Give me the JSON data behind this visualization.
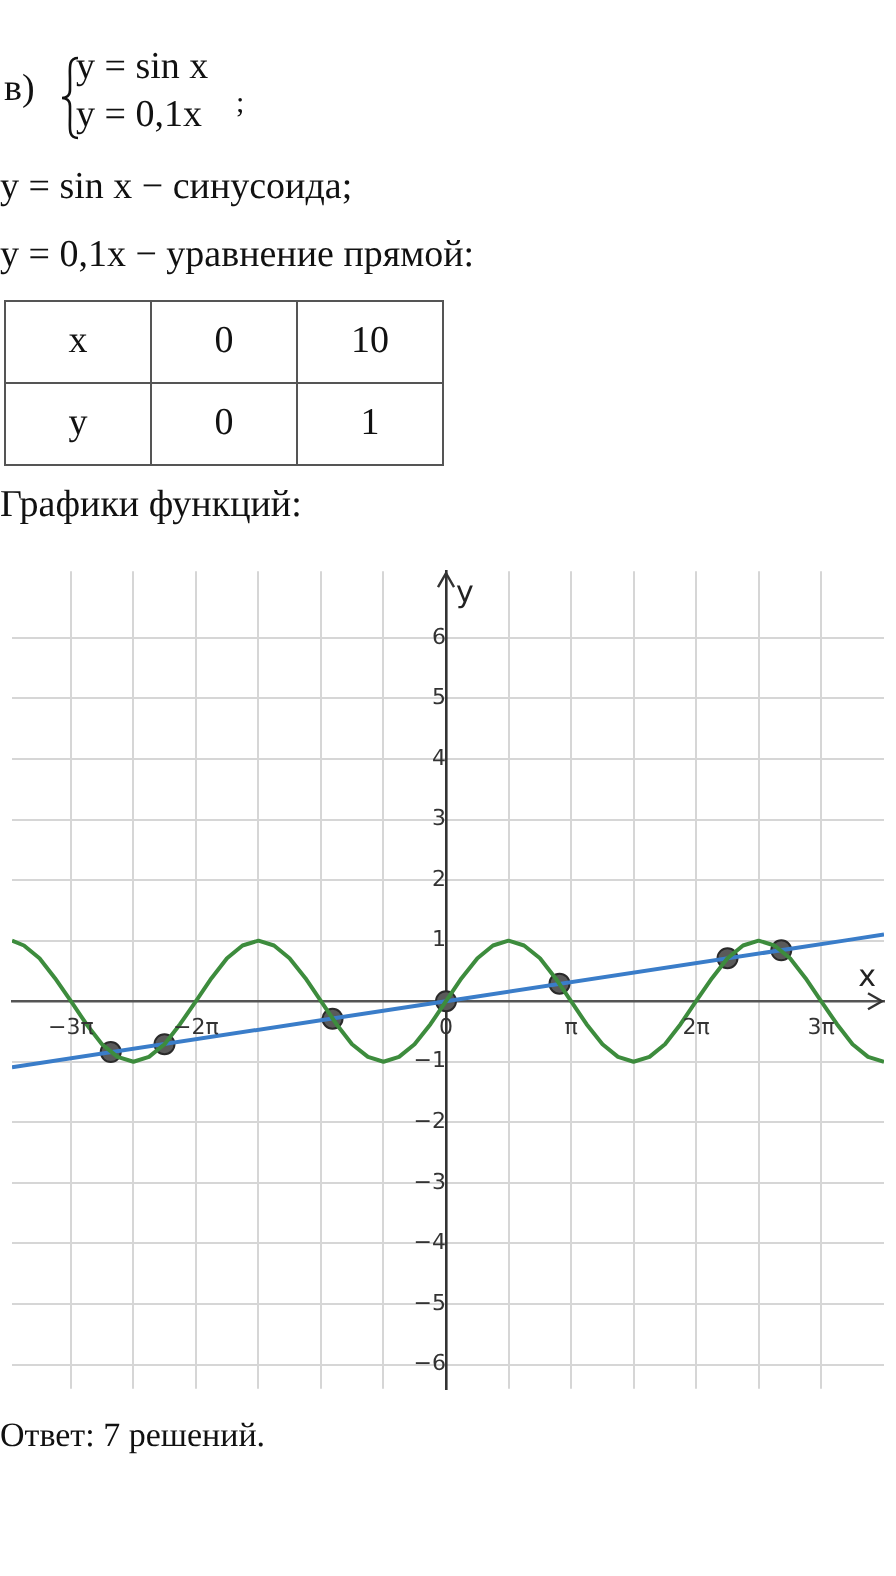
{
  "chart_data": {
    "type": "line",
    "annotations": [
      "в)",
      "y = sin x",
      "y = 0,1x",
      ";",
      "y = sin x − синусоида;",
      "y = 0,1x − уравнение прямой:",
      "x",
      "0",
      "10",
      "y",
      "0",
      "1",
      "Графики функций:",
      "Ответ:  7 решений."
    ],
    "xlabel": "x",
    "ylabel": "y",
    "xlim": [
      -10.9,
      11.0
    ],
    "ylim": [
      -6.4,
      7.1
    ],
    "xticks": [
      {
        "value": -9.42,
        "label": "−3π"
      },
      {
        "value": -7.85,
        "label": null
      },
      {
        "value": -6.28,
        "label": "−2π"
      },
      {
        "value": -4.71,
        "label": null
      },
      {
        "value": -3.14,
        "label": null
      },
      {
        "value": -1.57,
        "label": null
      },
      {
        "value": 0,
        "label": "0"
      },
      {
        "value": 1.57,
        "label": null
      },
      {
        "value": 3.14,
        "label": "π"
      },
      {
        "value": 4.71,
        "label": null
      },
      {
        "value": 6.28,
        "label": "2π"
      },
      {
        "value": 7.85,
        "label": null
      },
      {
        "value": 9.42,
        "label": "3π"
      }
    ],
    "yticks": [
      -6,
      -5,
      -4,
      -3,
      -2,
      -1,
      {
        "value": 0,
        "label": null
      },
      1,
      2,
      3,
      4,
      5,
      6
    ],
    "grid": true,
    "legend": false,
    "series": [
      {
        "type": "line",
        "color": "#3d8c3d",
        "marker": "none",
        "x": [
          -10.9,
          -10.6,
          -10.21,
          -9.82,
          -9.42,
          -9.03,
          -8.64,
          -8.25,
          -7.85,
          -7.46,
          -7.07,
          -6.68,
          -6.28,
          -5.89,
          -5.5,
          -5.11,
          -4.71,
          -4.32,
          -3.93,
          -3.53,
          -3.14,
          -2.75,
          -2.36,
          -1.96,
          -1.57,
          -1.18,
          -0.79,
          -0.39,
          0,
          0.39,
          0.79,
          1.18,
          1.57,
          1.96,
          2.36,
          2.75,
          3.14,
          3.53,
          3.93,
          4.32,
          4.71,
          5.11,
          5.5,
          5.89,
          6.28,
          6.68,
          7.07,
          7.46,
          7.85,
          8.25,
          8.64,
          9.03,
          9.42,
          9.82,
          10.21,
          10.6,
          11.0
        ],
        "values": [
          1.0,
          0.92,
          0.71,
          0.38,
          0,
          -0.38,
          -0.71,
          -0.92,
          -1,
          -0.92,
          -0.71,
          -0.38,
          0,
          0.38,
          0.71,
          0.92,
          1,
          0.92,
          0.71,
          0.38,
          0,
          -0.38,
          -0.71,
          -0.92,
          -1,
          -0.92,
          -0.71,
          -0.38,
          0,
          0.38,
          0.71,
          0.92,
          1,
          0.92,
          0.71,
          0.38,
          0,
          -0.38,
          -0.71,
          -0.92,
          -1,
          -0.92,
          -0.71,
          -0.38,
          0,
          0.38,
          0.71,
          0.92,
          1,
          0.92,
          0.71,
          0.38,
          0,
          -0.38,
          -0.71,
          -0.92,
          -1.0
        ]
      },
      {
        "type": "line",
        "color": "#3a7dc9",
        "marker": "none",
        "x": [
          -10.9,
          0,
          10,
          11.0
        ],
        "values": [
          -1.09,
          0,
          1,
          1.1
        ]
      },
      {
        "type": "scatter",
        "color": "#5a5a5a",
        "marker": "circle",
        "x": [
          -8.42,
          -7.07,
          -2.85,
          0,
          2.85,
          7.07,
          8.42
        ],
        "values": [
          -0.84,
          -0.71,
          -0.29,
          0,
          0.29,
          0.71,
          0.84
        ]
      }
    ]
  }
}
